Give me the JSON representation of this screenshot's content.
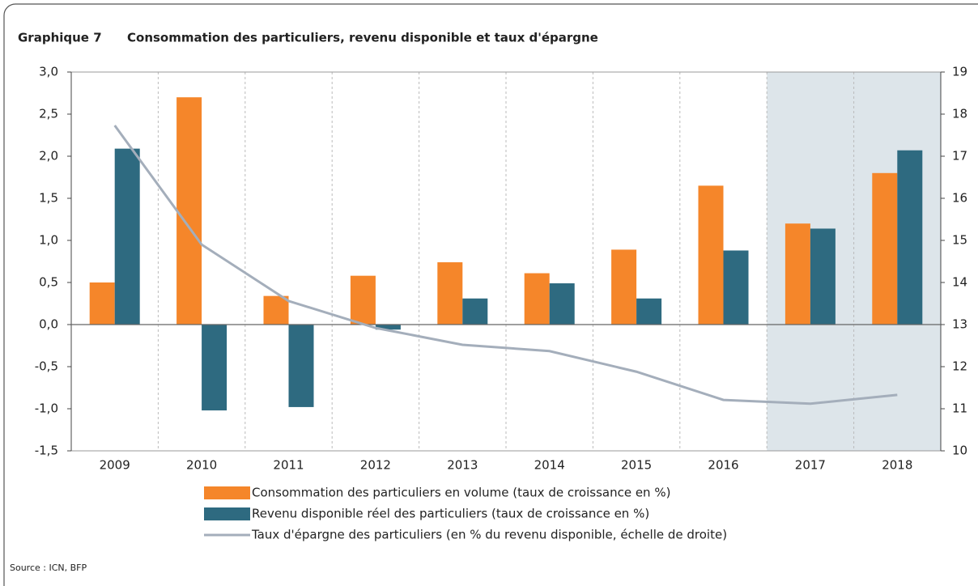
{
  "chart_data": {
    "type": "bar",
    "title_prefix": "Graphique 7",
    "title": "Consommation des particuliers, revenu disponible et taux d'épargne",
    "source": "Source : ICN, BFP",
    "categories": [
      "2009",
      "2010",
      "2011",
      "2012",
      "2013",
      "2014",
      "2015",
      "2016",
      "2017",
      "2018"
    ],
    "series": [
      {
        "name": "Consommation des particuliers en volume (taux de croissance en %)",
        "type": "bar",
        "color": "#f5862a",
        "values": [
          0.5,
          2.7,
          0.34,
          0.58,
          0.74,
          0.61,
          0.89,
          1.65,
          1.2,
          1.8
        ]
      },
      {
        "name": "Revenu disponible réel des particuliers (taux de croissance en %)",
        "type": "bar",
        "color": "#2e6a80",
        "values": [
          2.09,
          -1.02,
          -0.98,
          -0.06,
          0.31,
          0.49,
          0.31,
          0.88,
          1.14,
          2.07
        ]
      },
      {
        "name": "Taux d'épargne des particuliers (en % du revenu disponible, échelle de droite)",
        "type": "line",
        "color": "#a4aebb",
        "axis": "y2",
        "values": [
          17.73,
          14.9,
          13.56,
          12.92,
          12.52,
          12.37,
          11.88,
          11.21,
          11.12,
          11.33
        ]
      }
    ],
    "ylim": [
      -1.5,
      3
    ],
    "yticks": [
      {
        "value": -1.5,
        "label": "-1,5"
      },
      {
        "value": -1,
        "label": "-1,0"
      },
      {
        "value": -0.5,
        "label": "-0,5"
      },
      {
        "value": 0,
        "label": "0,0"
      },
      {
        "value": 0.5,
        "label": "0,5"
      },
      {
        "value": 1,
        "label": "1,0"
      },
      {
        "value": 1.5,
        "label": "1,5"
      },
      {
        "value": 2,
        "label": "2,0"
      },
      {
        "value": 2.5,
        "label": "2,5"
      },
      {
        "value": 3,
        "label": "3,0"
      }
    ],
    "y2lim": [
      10,
      19
    ],
    "y2ticks": [
      10,
      11,
      12,
      13,
      14,
      15,
      16,
      17,
      18,
      19
    ],
    "xgrid": true,
    "shaded": {
      "from": "2017",
      "to": "2018",
      "color": "#dde5ea"
    },
    "legend": "bottom"
  }
}
